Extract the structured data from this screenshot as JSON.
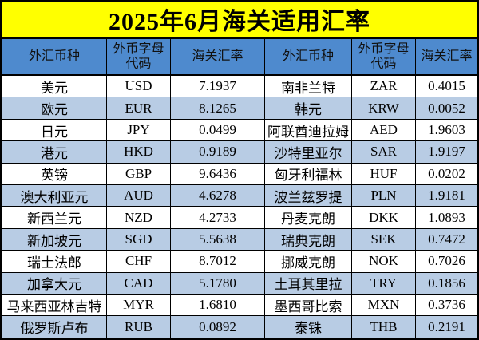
{
  "title": "2025年6月海关适用汇率",
  "colors": {
    "title_bg": "#ffff00",
    "title_text": "#000000",
    "header_bg": "#4e8ace",
    "header_text": "#111111",
    "row_bg": "#ffffff",
    "row_alt_bg": "#b8cce4",
    "border": "#000000"
  },
  "table": {
    "headers": [
      "外汇币种",
      "外币字母代码",
      "海关汇率",
      "外汇币种",
      "外币字母代码",
      "海关汇率"
    ],
    "rows": [
      [
        "美元",
        "USD",
        "7.1937",
        "南非兰特",
        "ZAR",
        "0.4015"
      ],
      [
        "欧元",
        "EUR",
        "8.1265",
        "韩元",
        "KRW",
        "0.0052"
      ],
      [
        "日元",
        "JPY",
        "0.0499",
        "阿联酋迪拉姆",
        "AED",
        "1.9603"
      ],
      [
        "港元",
        "HKD",
        "0.9189",
        "沙特里亚尔",
        "SAR",
        "1.9197"
      ],
      [
        "英镑",
        "GBP",
        "9.6436",
        "匈牙利福林",
        "HUF",
        "0.0202"
      ],
      [
        "澳大利亚元",
        "AUD",
        "4.6278",
        "波兰兹罗提",
        "PLN",
        "1.9181"
      ],
      [
        "新西兰元",
        "NZD",
        "4.2733",
        "丹麦克朗",
        "DKK",
        "1.0893"
      ],
      [
        "新加坡元",
        "SGD",
        "5.5638",
        "瑞典克朗",
        "SEK",
        "0.7472"
      ],
      [
        "瑞士法郎",
        "CHF",
        "8.7012",
        "挪威克朗",
        "NOK",
        "0.7026"
      ],
      [
        "加拿大元",
        "CAD",
        "5.1780",
        "土耳其里拉",
        "TRY",
        "0.1856"
      ],
      [
        "马来西亚林吉特",
        "MYR",
        "1.6810",
        "墨西哥比索",
        "MXN",
        "0.3736"
      ],
      [
        "俄罗斯卢布",
        "RUB",
        "0.0892",
        "泰铢",
        "THB",
        "0.2191"
      ]
    ]
  }
}
